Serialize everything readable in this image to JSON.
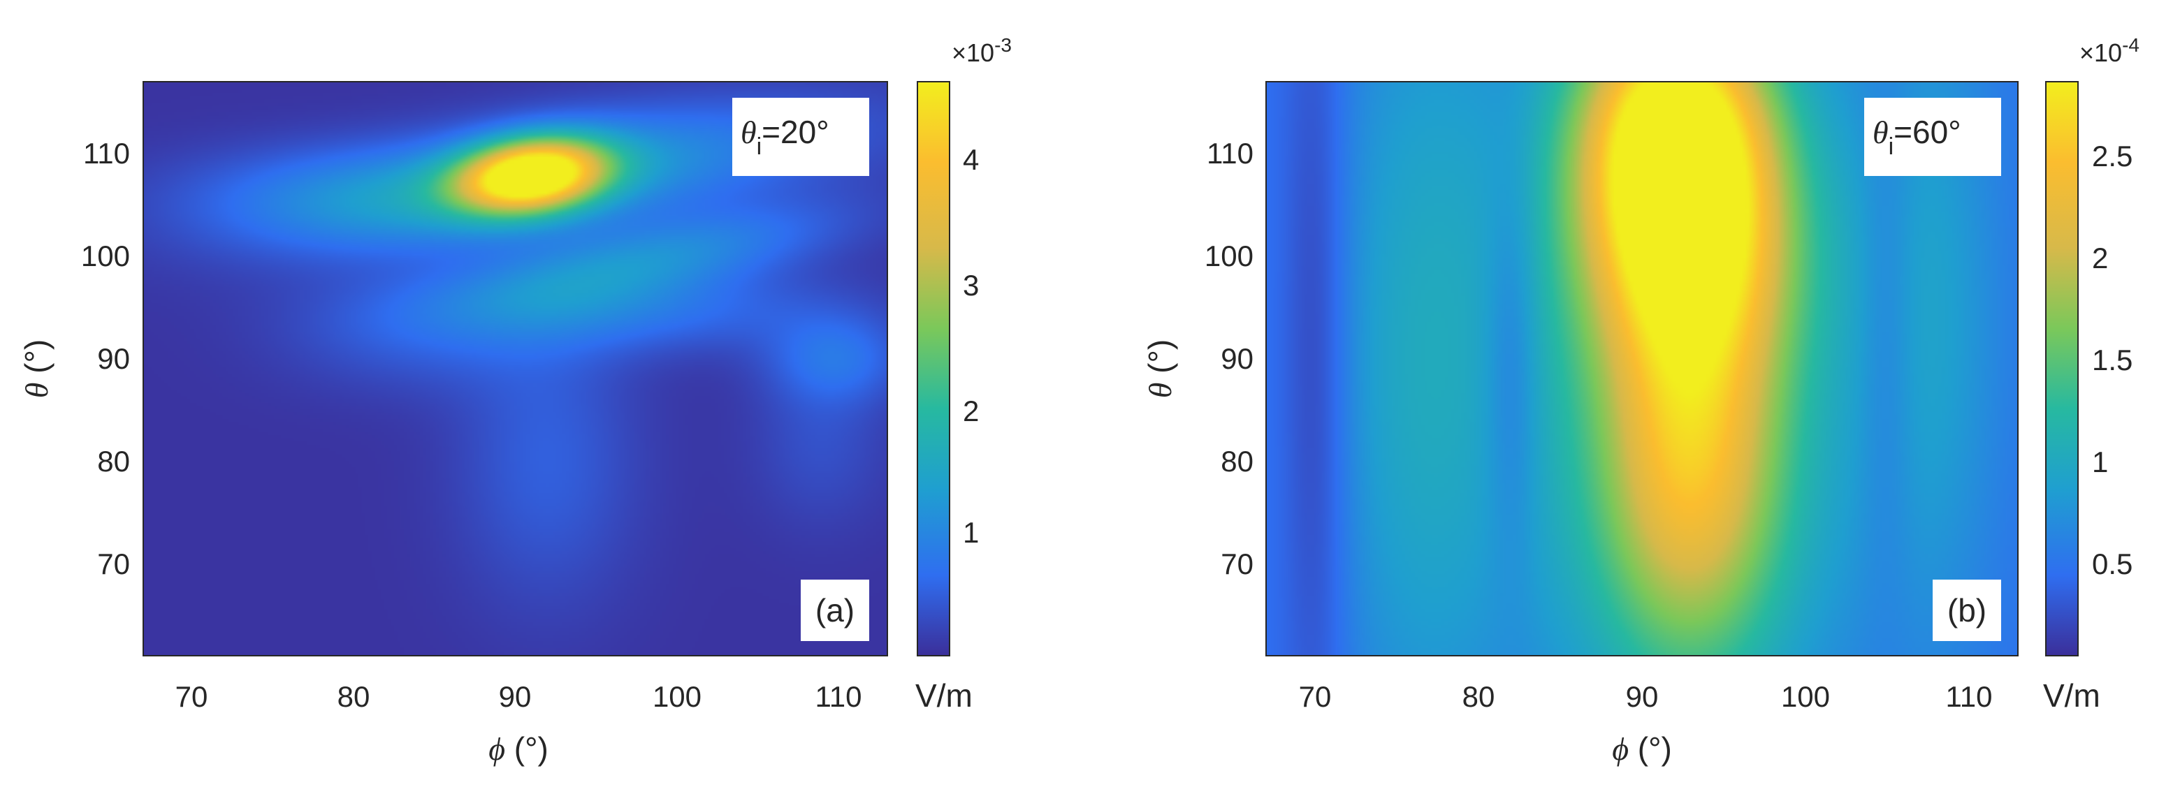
{
  "chart_data": [
    {
      "type": "heatmap",
      "panel_label": "(a)",
      "annotation": {
        "symbol": "θ",
        "subscript": "i",
        "value": "=20°"
      },
      "xlabel": {
        "symbol": "ϕ",
        "unit": " (°)"
      },
      "ylabel": {
        "symbol": "θ",
        "unit": " (°)"
      },
      "xlim": [
        67,
        113
      ],
      "ylim": [
        61,
        117
      ],
      "xticks": [
        70,
        80,
        90,
        100,
        110
      ],
      "yticks": [
        70,
        80,
        90,
        100,
        110
      ],
      "colorbar": {
        "ticks": [
          1,
          2,
          3,
          4
        ],
        "range": [
          0.1,
          4.6
        ],
        "exponent_prefix": "×10",
        "exponent": "-3",
        "unit": "V/m",
        "colors": [
          "#3b2f9a",
          "#2f6ef0",
          "#1f9fd0",
          "#27b9a0",
          "#7bc85a",
          "#d7b94a",
          "#fbbd2f",
          "#f2ee1e"
        ]
      },
      "background": 0.15,
      "features": [
        {
          "x": 91,
          "y": 108,
          "amp": 4.5,
          "sx": 3.2,
          "sy": 2.3,
          "rot": -0.35
        },
        {
          "x": 93,
          "y": 108,
          "amp": 1.2,
          "sx": 12,
          "sy": 3.8,
          "rot": -0.25
        },
        {
          "x": 80,
          "y": 106,
          "amp": 0.6,
          "sx": 8,
          "sy": 3.5,
          "rot": 0
        },
        {
          "x": 99,
          "y": 100,
          "amp": 0.9,
          "sx": 8,
          "sy": 2.5,
          "rot": -0.3
        },
        {
          "x": 96,
          "y": 95,
          "amp": 0.7,
          "sx": 9,
          "sy": 3,
          "rot": 0
        },
        {
          "x": 110,
          "y": 90,
          "amp": 0.6,
          "sx": 3,
          "sy": 3,
          "rot": 0
        },
        {
          "x": 92,
          "y": 80,
          "amp": 0.45,
          "sx": 4,
          "sy": 10,
          "rot": 0
        },
        {
          "x": 109,
          "y": 82,
          "amp": 0.3,
          "sx": 3,
          "sy": 6,
          "rot": 0
        },
        {
          "x": 84,
          "y": 92,
          "amp": 0.35,
          "sx": 6,
          "sy": 4,
          "rot": 0
        }
      ]
    },
    {
      "type": "heatmap",
      "panel_label": "(b)",
      "annotation": {
        "symbol": "θ",
        "subscript": "i",
        "value": "=60°"
      },
      "xlabel": {
        "symbol": "ϕ",
        "unit": " (°)"
      },
      "ylabel": {
        "symbol": "θ",
        "unit": " (°)"
      },
      "xlim": [
        67,
        113
      ],
      "ylim": [
        61,
        117
      ],
      "xticks": [
        70,
        80,
        90,
        100,
        110
      ],
      "yticks": [
        70,
        80,
        90,
        100,
        110
      ],
      "colorbar": {
        "ticks": [
          0.5,
          1,
          1.5,
          2,
          2.5
        ],
        "range": [
          0.05,
          2.9
        ],
        "exponent_prefix": "×10",
        "exponent": "-4",
        "unit": "V/m",
        "colors": [
          "#3b2f9a",
          "#2f6ef0",
          "#1f9fd0",
          "#27b9a0",
          "#7bc85a",
          "#d7b94a",
          "#fbbd2f",
          "#f2ee1e"
        ]
      },
      "background": 0.45,
      "features": [
        {
          "x": 92,
          "y": 112,
          "amp": 2.4,
          "sx": 4,
          "sy": 9,
          "rot": 0
        },
        {
          "x": 93,
          "y": 100,
          "amp": 1.3,
          "sx": 4.5,
          "sy": 9,
          "rot": 0
        },
        {
          "x": 93,
          "y": 80,
          "amp": 1.55,
          "sx": 4,
          "sy": 14,
          "rot": 0
        },
        {
          "x": 92,
          "y": 90,
          "amp": 0.6,
          "sx": 10,
          "sy": 30,
          "rot": 0
        },
        {
          "x": 76,
          "y": 90,
          "amp": 0.4,
          "sx": 4,
          "sy": 30,
          "rot": 0
        },
        {
          "x": 108,
          "y": 95,
          "amp": 0.3,
          "sx": 3,
          "sy": 25,
          "rot": 0
        },
        {
          "x": 82,
          "y": 90,
          "amp": -0.3,
          "sx": 1.2,
          "sy": 14,
          "rot": 0
        },
        {
          "x": 70,
          "y": 90,
          "amp": -0.35,
          "sx": 1.5,
          "sy": 30,
          "rot": 0
        },
        {
          "x": 105,
          "y": 92,
          "amp": -0.2,
          "sx": 1.2,
          "sy": 18,
          "rot": 0
        }
      ]
    }
  ]
}
